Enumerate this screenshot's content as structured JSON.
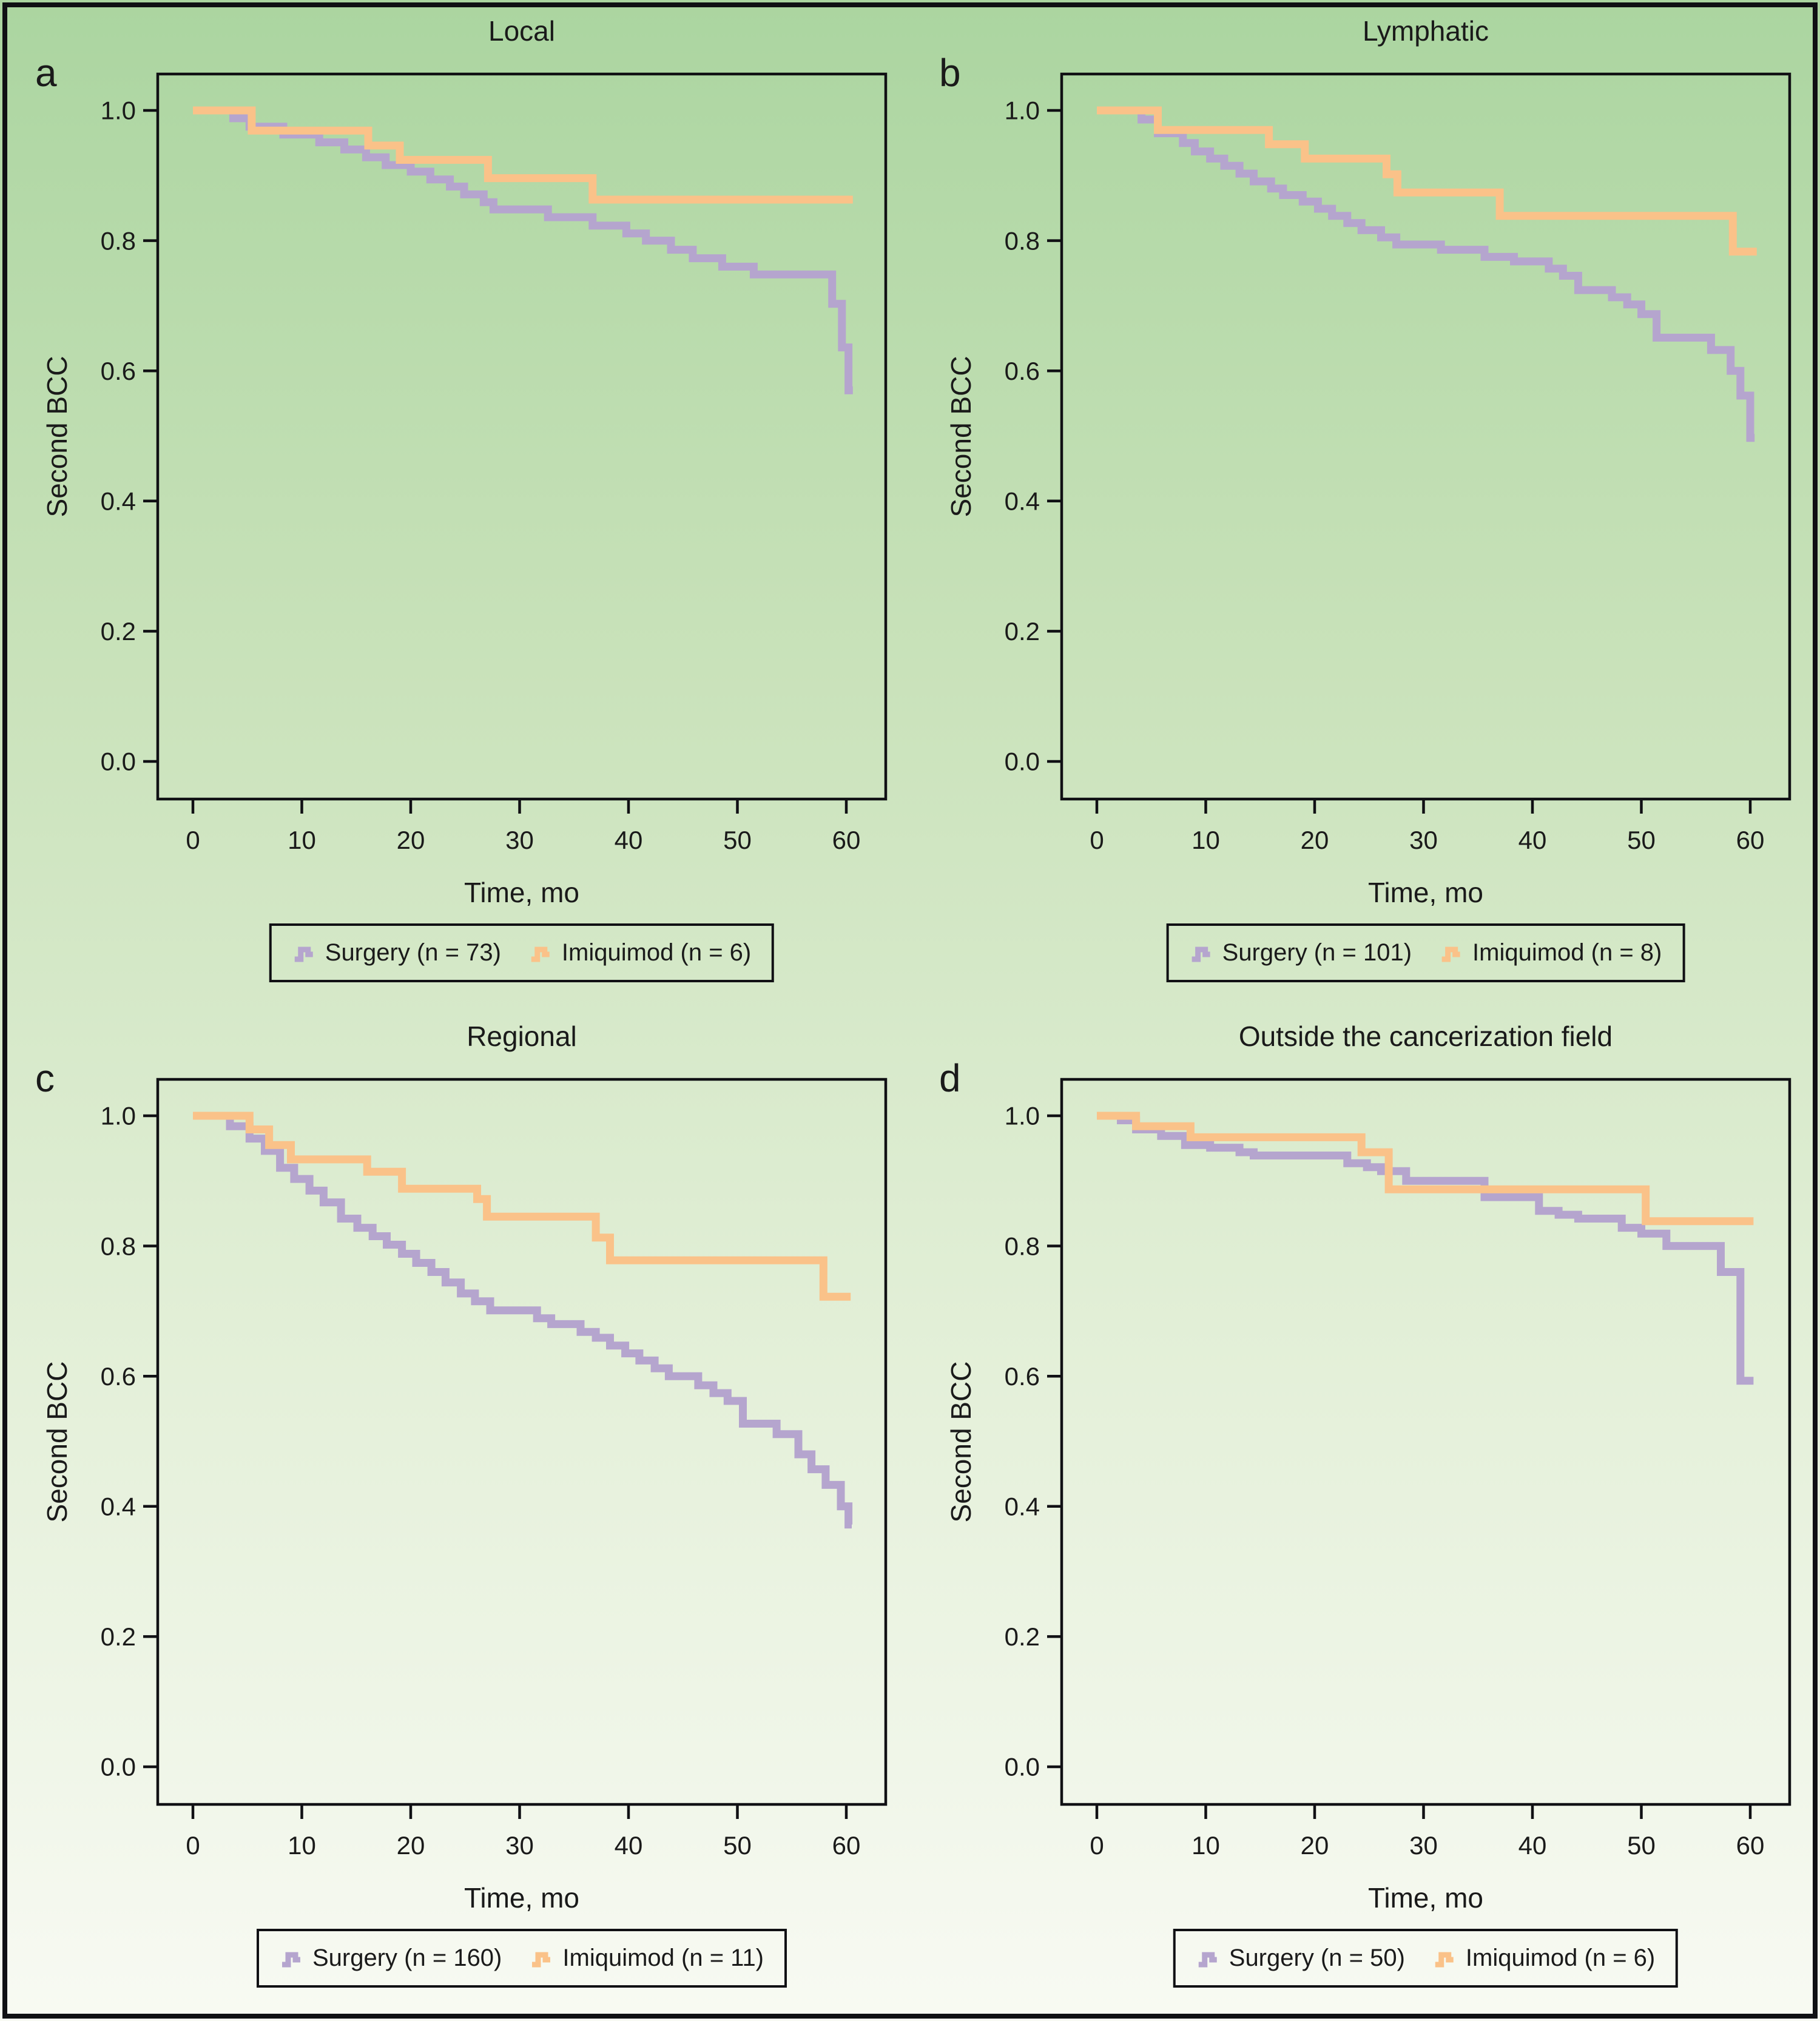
{
  "figure": {
    "background_top": "#abd5a0",
    "background_bottom": "#f8faf3",
    "frame_color": "#101014",
    "text_color": "#1a1a1a",
    "surgery_color": "#b5a5ce",
    "imiquimod_color": "#fac289"
  },
  "chart_data": [
    {
      "panel_label": "a",
      "title": "Local",
      "type": "line",
      "subtype": "kaplan-meier-step",
      "xlabel": "Time, mo",
      "ylabel": "Second BCC",
      "xlim": [
        0,
        63
      ],
      "ylim": [
        0.0,
        1.0
      ],
      "xticks": [
        "0",
        "10",
        "20",
        "30",
        "40",
        "50",
        "60"
      ],
      "yticks": [
        "1.0",
        "0.8",
        "0.6",
        "0.4",
        "0.2",
        "0.0"
      ],
      "grid": false,
      "legend_position": "bottom",
      "series": [
        {
          "name": "Surgery (n = 73)",
          "color": "#b5a5ce",
          "end_t": 60.6,
          "steps": [
            [
              0,
              1
            ],
            [
              3.7,
              0.988
            ],
            [
              5.2,
              0.975
            ],
            [
              8.3,
              0.963
            ],
            [
              11.6,
              0.951
            ],
            [
              13.9,
              0.94
            ],
            [
              15.9,
              0.928
            ],
            [
              17.7,
              0.916
            ],
            [
              20,
              0.906
            ],
            [
              21.8,
              0.894
            ],
            [
              23.6,
              0.883
            ],
            [
              24.9,
              0.871
            ],
            [
              26.7,
              0.859
            ],
            [
              27.6,
              0.848
            ],
            [
              32.6,
              0.836
            ],
            [
              36.7,
              0.823
            ],
            [
              39.8,
              0.811
            ],
            [
              41.6,
              0.8
            ],
            [
              43.9,
              0.786
            ],
            [
              45.9,
              0.773
            ],
            [
              48.6,
              0.76
            ],
            [
              51.5,
              0.748
            ],
            [
              58.7,
              0.703
            ],
            [
              59.6,
              0.636
            ],
            [
              60.2,
              0.57
            ]
          ]
        },
        {
          "name": "Imiquimod (n = 6)",
          "color": "#fac289",
          "end_t": 60.6,
          "steps": [
            [
              0,
              1
            ],
            [
              5.4,
              0.969
            ],
            [
              16.1,
              0.946
            ],
            [
              19,
              0.924
            ],
            [
              27.1,
              0.896
            ],
            [
              36.7,
              0.863
            ]
          ]
        }
      ]
    },
    {
      "panel_label": "b",
      "title": "Lymphatic",
      "type": "line",
      "subtype": "kaplan-meier-step",
      "xlabel": "Time, mo",
      "ylabel": "Second BCC",
      "xlim": [
        0,
        63
      ],
      "ylim": [
        0.0,
        1.0
      ],
      "xticks": [
        "0",
        "10",
        "20",
        "30",
        "40",
        "50",
        "60"
      ],
      "yticks": [
        "1.0",
        "0.8",
        "0.6",
        "0.4",
        "0.2",
        "0.0"
      ],
      "grid": false,
      "legend_position": "bottom",
      "series": [
        {
          "name": "Surgery (n = 101)",
          "color": "#b5a5ce",
          "end_t": 60.4,
          "steps": [
            [
              0,
              1
            ],
            [
              4.1,
              0.986
            ],
            [
              5.6,
              0.965
            ],
            [
              7.9,
              0.95
            ],
            [
              9,
              0.937
            ],
            [
              10.4,
              0.926
            ],
            [
              11.7,
              0.915
            ],
            [
              13.1,
              0.903
            ],
            [
              14.4,
              0.891
            ],
            [
              16,
              0.88
            ],
            [
              17.1,
              0.87
            ],
            [
              18.9,
              0.86
            ],
            [
              20.3,
              0.849
            ],
            [
              21.6,
              0.838
            ],
            [
              23,
              0.827
            ],
            [
              24.3,
              0.816
            ],
            [
              26.1,
              0.805
            ],
            [
              27.5,
              0.794
            ],
            [
              31.6,
              0.786
            ],
            [
              35.6,
              0.775
            ],
            [
              38.3,
              0.768
            ],
            [
              41.5,
              0.757
            ],
            [
              42.8,
              0.746
            ],
            [
              44.2,
              0.724
            ],
            [
              47.3,
              0.713
            ],
            [
              48.7,
              0.702
            ],
            [
              50,
              0.687
            ],
            [
              51.4,
              0.651
            ],
            [
              56.4,
              0.632
            ],
            [
              58.2,
              0.6
            ],
            [
              59.1,
              0.562
            ],
            [
              60,
              0.497
            ]
          ]
        },
        {
          "name": "Imiquimod (n = 8)",
          "color": "#fac289",
          "end_t": 60.6,
          "steps": [
            [
              0,
              1
            ],
            [
              5.6,
              0.97
            ],
            [
              15.8,
              0.948
            ],
            [
              19.1,
              0.926
            ],
            [
              26.6,
              0.902
            ],
            [
              27.6,
              0.874
            ],
            [
              37,
              0.838
            ],
            [
              58.4,
              0.783
            ]
          ]
        }
      ]
    },
    {
      "panel_label": "c",
      "title": "Regional",
      "type": "line",
      "subtype": "kaplan-meier-step",
      "xlabel": "Time, mo",
      "ylabel": "Second BCC",
      "xlim": [
        0,
        63
      ],
      "ylim": [
        0.0,
        1.0
      ],
      "xticks": [
        "0",
        "10",
        "20",
        "30",
        "40",
        "50",
        "60"
      ],
      "yticks": [
        "1.0",
        "0.8",
        "0.6",
        "0.4",
        "0.2",
        "0.0"
      ],
      "grid": false,
      "legend_position": "bottom",
      "series": [
        {
          "name": "Surgery (n = 160)",
          "color": "#b5a5ce",
          "end_t": 60.5,
          "steps": [
            [
              0,
              1
            ],
            [
              3.4,
              0.984
            ],
            [
              5.2,
              0.965
            ],
            [
              6.6,
              0.946
            ],
            [
              8,
              0.92
            ],
            [
              9.3,
              0.903
            ],
            [
              10.7,
              0.885
            ],
            [
              12,
              0.867
            ],
            [
              13.6,
              0.842
            ],
            [
              15.1,
              0.828
            ],
            [
              16.5,
              0.815
            ],
            [
              17.8,
              0.802
            ],
            [
              19.2,
              0.788
            ],
            [
              20.5,
              0.774
            ],
            [
              21.9,
              0.76
            ],
            [
              23.2,
              0.744
            ],
            [
              24.6,
              0.727
            ],
            [
              25.9,
              0.715
            ],
            [
              27.3,
              0.701
            ],
            [
              31.6,
              0.689
            ],
            [
              32.9,
              0.68
            ],
            [
              35.6,
              0.668
            ],
            [
              37,
              0.659
            ],
            [
              38.3,
              0.647
            ],
            [
              39.7,
              0.635
            ],
            [
              41,
              0.624
            ],
            [
              42.4,
              0.612
            ],
            [
              43.7,
              0.6
            ],
            [
              46.4,
              0.586
            ],
            [
              47.8,
              0.574
            ],
            [
              49.1,
              0.562
            ],
            [
              50.5,
              0.527
            ],
            [
              53.6,
              0.511
            ],
            [
              55.6,
              0.48
            ],
            [
              56.8,
              0.457
            ],
            [
              58.1,
              0.433
            ],
            [
              59.5,
              0.4
            ],
            [
              60.2,
              0.372
            ]
          ]
        },
        {
          "name": "Imiquimod (n = 11)",
          "color": "#fac289",
          "end_t": 60.4,
          "steps": [
            [
              0,
              1
            ],
            [
              5.2,
              0.979
            ],
            [
              7,
              0.955
            ],
            [
              9,
              0.933
            ],
            [
              16,
              0.914
            ],
            [
              19.2,
              0.888
            ],
            [
              26.1,
              0.872
            ],
            [
              27,
              0.845
            ],
            [
              37,
              0.813
            ],
            [
              38.3,
              0.778
            ],
            [
              57.9,
              0.722
            ]
          ]
        }
      ]
    },
    {
      "panel_label": "d",
      "title": "Outside the cancerization field",
      "type": "line",
      "subtype": "kaplan-meier-step",
      "xlabel": "Time, mo",
      "ylabel": "Second BCC",
      "xlim": [
        0,
        63
      ],
      "ylim": [
        0.0,
        1.0
      ],
      "xticks": [
        "0",
        "10",
        "20",
        "30",
        "40",
        "50",
        "60"
      ],
      "yticks": [
        "1.0",
        "0.8",
        "0.6",
        "0.4",
        "0.2",
        "0.0"
      ],
      "grid": false,
      "legend_position": "bottom",
      "series": [
        {
          "name": "Surgery (n = 50)",
          "color": "#b5a5ce",
          "end_t": 60.3,
          "steps": [
            [
              0,
              1
            ],
            [
              2.2,
              0.993
            ],
            [
              3.6,
              0.979
            ],
            [
              5.9,
              0.969
            ],
            [
              8.1,
              0.955
            ],
            [
              10.4,
              0.951
            ],
            [
              13.1,
              0.944
            ],
            [
              14.4,
              0.939
            ],
            [
              23,
              0.927
            ],
            [
              24.8,
              0.921
            ],
            [
              26.1,
              0.915
            ],
            [
              28.4,
              0.9
            ],
            [
              35.6,
              0.875
            ],
            [
              40.6,
              0.854
            ],
            [
              42.4,
              0.848
            ],
            [
              44.2,
              0.842
            ],
            [
              48.2,
              0.828
            ],
            [
              50,
              0.819
            ],
            [
              52.3,
              0.8
            ],
            [
              57.3,
              0.76
            ],
            [
              59.1,
              0.593
            ]
          ]
        },
        {
          "name": "Imiquimod (n = 6)",
          "color": "#fac289",
          "end_t": 60.3,
          "steps": [
            [
              0,
              1
            ],
            [
              3.6,
              0.984
            ],
            [
              8.6,
              0.967
            ],
            [
              24.3,
              0.944
            ],
            [
              26.8,
              0.887
            ],
            [
              50.4,
              0.838
            ]
          ]
        }
      ]
    }
  ]
}
